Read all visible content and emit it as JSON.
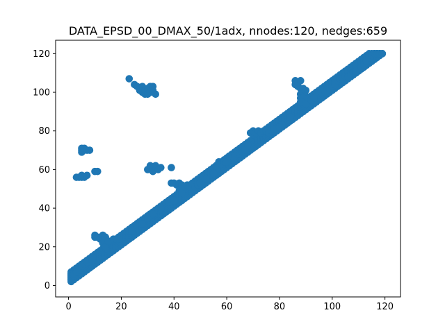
{
  "chart_data": {
    "type": "scatter",
    "title": "DATA_EPSD_00_DMAX_50/1adx, nnodes:120, nedges:659",
    "xlabel": "",
    "ylabel": "",
    "xlim": [
      -4.9,
      125.9
    ],
    "ylim": [
      -5.95,
      126.95
    ],
    "xticks": [
      0,
      20,
      40,
      60,
      80,
      100,
      120
    ],
    "yticks": [
      0,
      20,
      40,
      60,
      80,
      100,
      120
    ],
    "grid": false,
    "marker_color": "#1f77b4",
    "diagonal_band": {
      "from": 1,
      "to": 119,
      "offsets": [
        1,
        2,
        3,
        4,
        5,
        6
      ]
    },
    "series": [
      {
        "points": [
          [
            1,
            3
          ],
          [
            1,
            4
          ],
          [
            1,
            5
          ],
          [
            1,
            6
          ],
          [
            2,
            5
          ],
          [
            2,
            6
          ],
          [
            3,
            7
          ],
          [
            4,
            8
          ],
          [
            5,
            10
          ],
          [
            6,
            11
          ],
          [
            7,
            12
          ],
          [
            9,
            13
          ],
          [
            9,
            14
          ],
          [
            10,
            25
          ],
          [
            10,
            26
          ],
          [
            11,
            25
          ],
          [
            12,
            24
          ],
          [
            13,
            26
          ],
          [
            13,
            22
          ],
          [
            14,
            25
          ],
          [
            14,
            20
          ],
          [
            15,
            23
          ],
          [
            17,
            24
          ],
          [
            18,
            24
          ],
          [
            19,
            24
          ],
          [
            3,
            56
          ],
          [
            4,
            56
          ],
          [
            5,
            56
          ],
          [
            5,
            57
          ],
          [
            6,
            56
          ],
          [
            7,
            57
          ],
          [
            10,
            59
          ],
          [
            11,
            59
          ],
          [
            5,
            69
          ],
          [
            5,
            70
          ],
          [
            5,
            71
          ],
          [
            6,
            70
          ],
          [
            6,
            71
          ],
          [
            7,
            70
          ],
          [
            8,
            70
          ],
          [
            23,
            107
          ],
          [
            25,
            104
          ],
          [
            26,
            103
          ],
          [
            27,
            101
          ],
          [
            27,
            102
          ],
          [
            28,
            100
          ],
          [
            28,
            103
          ],
          [
            29,
            99
          ],
          [
            29,
            101
          ],
          [
            30,
            102
          ],
          [
            30,
            99
          ],
          [
            31,
            103
          ],
          [
            31,
            100
          ],
          [
            32,
            101
          ],
          [
            32,
            103
          ],
          [
            33,
            99
          ],
          [
            30,
            60
          ],
          [
            31,
            62
          ],
          [
            32,
            61
          ],
          [
            32,
            59
          ],
          [
            33,
            62
          ],
          [
            34,
            60
          ],
          [
            35,
            61
          ],
          [
            39,
            61
          ],
          [
            24,
            28
          ],
          [
            28,
            32
          ],
          [
            30,
            35
          ],
          [
            32,
            37
          ],
          [
            35,
            40
          ],
          [
            38,
            43
          ],
          [
            40,
            44
          ],
          [
            39,
            53
          ],
          [
            40,
            53
          ],
          [
            41,
            52
          ],
          [
            42,
            53
          ],
          [
            42,
            49
          ],
          [
            43,
            52
          ],
          [
            43,
            48
          ],
          [
            44,
            51
          ],
          [
            45,
            52
          ],
          [
            46,
            51
          ],
          [
            47,
            52
          ],
          [
            48,
            51
          ],
          [
            49,
            52
          ],
          [
            50,
            53
          ],
          [
            52,
            55
          ],
          [
            55,
            58
          ],
          [
            56,
            62
          ],
          [
            57,
            64
          ],
          [
            58,
            63
          ],
          [
            59,
            64
          ],
          [
            60,
            64
          ],
          [
            61,
            67
          ],
          [
            62,
            67
          ],
          [
            63,
            67
          ],
          [
            64,
            68
          ],
          [
            65,
            68
          ],
          [
            66,
            69
          ],
          [
            67,
            70
          ],
          [
            68,
            73
          ],
          [
            69,
            79
          ],
          [
            70,
            78
          ],
          [
            70,
            80
          ],
          [
            71,
            79
          ],
          [
            72,
            80
          ],
          [
            73,
            79
          ],
          [
            74,
            80
          ],
          [
            75,
            80
          ],
          [
            76,
            79
          ],
          [
            77,
            80
          ],
          [
            78,
            81
          ],
          [
            80,
            82
          ],
          [
            81,
            83
          ],
          [
            84,
            87
          ],
          [
            86,
            104
          ],
          [
            86,
            106
          ],
          [
            87,
            105
          ],
          [
            87,
            103
          ],
          [
            88,
            106
          ],
          [
            88,
            102
          ],
          [
            88,
            99
          ],
          [
            88,
            97
          ],
          [
            88,
            95
          ],
          [
            89,
            102
          ],
          [
            89,
            97
          ],
          [
            90,
            101
          ],
          [
            90,
            98
          ],
          [
            90,
            94
          ],
          [
            91,
            97
          ],
          [
            92,
            96
          ],
          [
            93,
            97
          ],
          [
            94,
            100
          ],
          [
            95,
            100
          ],
          [
            96,
            100
          ],
          [
            97,
            101
          ],
          [
            98,
            101
          ],
          [
            99,
            102
          ],
          [
            100,
            103
          ],
          [
            101,
            104
          ],
          [
            102,
            106
          ],
          [
            103,
            107
          ],
          [
            104,
            107
          ],
          [
            105,
            108
          ],
          [
            106,
            108
          ],
          [
            107,
            109
          ],
          [
            108,
            110
          ],
          [
            109,
            111
          ],
          [
            110,
            112
          ],
          [
            111,
            113
          ],
          [
            112,
            114
          ],
          [
            113,
            116
          ],
          [
            114,
            118
          ],
          [
            115,
            119
          ],
          [
            116,
            120
          ],
          [
            117,
            120
          ],
          [
            118,
            120
          ],
          [
            119,
            120
          ]
        ]
      }
    ]
  }
}
